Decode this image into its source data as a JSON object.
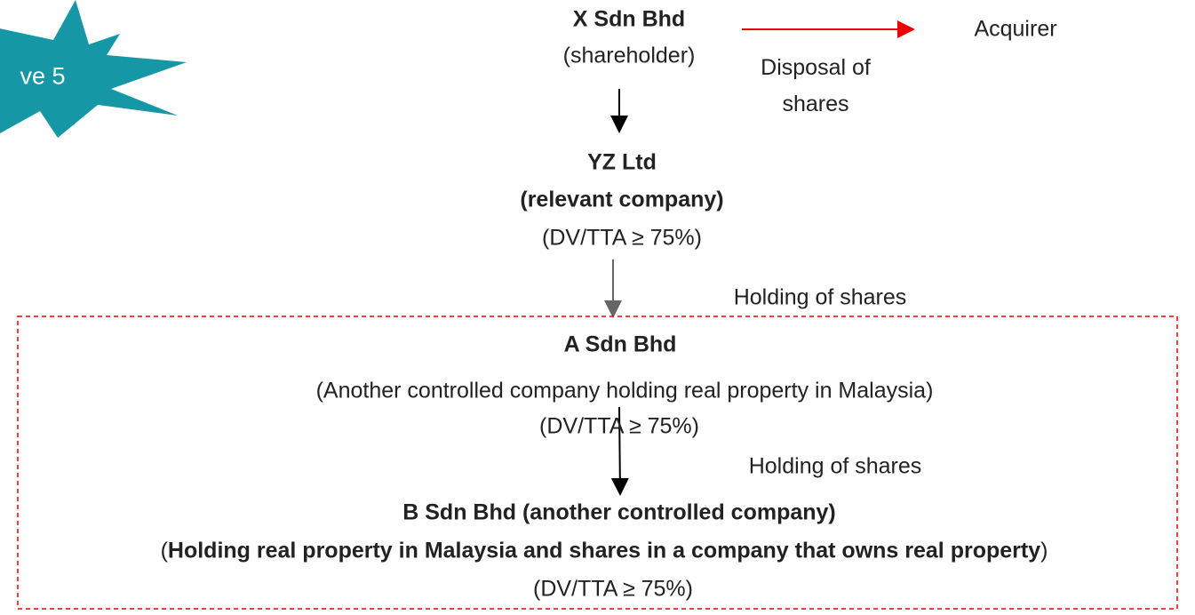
{
  "badge": "ve 5",
  "nodes": [
    {
      "name": "X Sdn Bhd",
      "lines": [
        "(shareholder)"
      ]
    },
    {
      "name": "Acquirer"
    },
    {
      "name": "YZ Ltd",
      "lines": [
        "(relevant company)",
        "(DV/TTA ≥ 75%)"
      ]
    },
    {
      "name": "A Sdn Bhd",
      "lines": [
        "(Another controlled company holding real property in Malaysia)",
        "(DV/TTA ≥ 75%)"
      ]
    },
    {
      "name": "B Sdn Bhd (another controlled company)",
      "detail": [
        "(",
        "Holding real property in Malaysia and shares in a company that owns real property",
        ")"
      ],
      "lines": [
        "(DV/TTA ≥ 75%)"
      ]
    }
  ],
  "edges": [
    {
      "label": "Disposal of shares"
    },
    {
      "label": "Holding of shares"
    },
    {
      "label": "Holding of shares"
    }
  ]
}
